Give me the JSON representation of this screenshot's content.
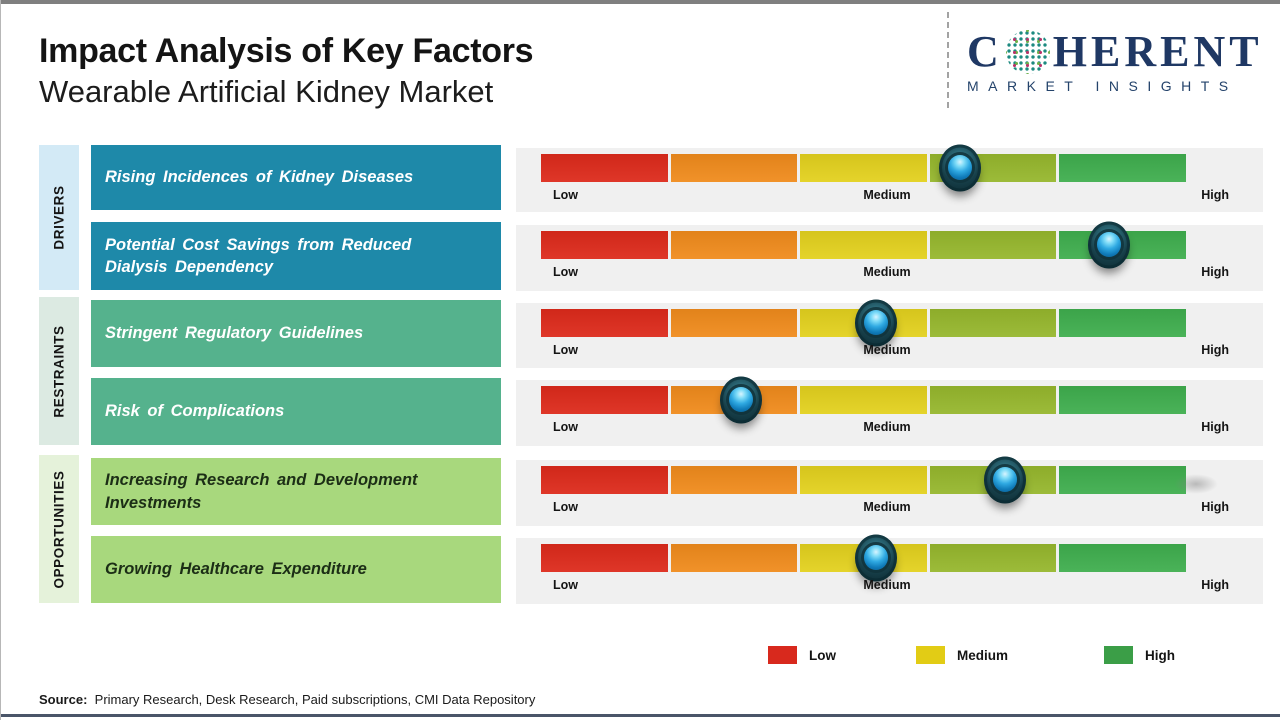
{
  "header": {
    "title": "Impact Analysis of Key Factors",
    "subtitle": "Wearable Artificial Kidney Market"
  },
  "logo": {
    "word_start": "C",
    "word_end": "HERENT",
    "tagline": "MARKET INSIGHTS",
    "navy_color": "#1f3864",
    "globe_icon_colors": [
      "#1d8a80",
      "#6fb14a",
      "#b8336b"
    ]
  },
  "chart_data": {
    "type": "impact-scale",
    "title": "Impact Analysis of Key Factors",
    "subtitle": "Wearable Artificial Kidney Market",
    "axis": {
      "min_label": "Low",
      "mid_label": "Medium",
      "max_label": "High",
      "range": [
        0,
        1
      ]
    },
    "segment_colors": [
      "#dd2a1b",
      "#f08b1c",
      "#e3d11e",
      "#96b72d",
      "#3fae4e"
    ],
    "track_background": "#f0f0f0",
    "marker_style": "glossy-blue-sphere",
    "groups": [
      {
        "name": "DRIVERS",
        "label_bg": "#d3eaf6",
        "box_color": "#1e89a9",
        "factors": [
          {
            "label": "Rising Incidences of Kidney Diseases",
            "impact_pos": 0.65,
            "impact_reading": "Medium-High"
          },
          {
            "label": "Potential Cost Savings from Reduced Dialysis Dependency",
            "impact_pos": 0.88,
            "impact_reading": "High"
          }
        ]
      },
      {
        "name": "RESTRAINTS",
        "label_bg": "#dceae2",
        "box_color": "#55b28d",
        "factors": [
          {
            "label": "Stringent Regulatory Guidelines",
            "impact_pos": 0.52,
            "impact_reading": "Medium"
          },
          {
            "label": "Risk of Complications",
            "impact_pos": 0.31,
            "impact_reading": "Low-Medium"
          }
        ]
      },
      {
        "name": "OPPORTUNITIES",
        "label_bg": "#e5f2da",
        "box_color": "#a8d87d",
        "factors": [
          {
            "label": "Increasing Research and Development Investments",
            "impact_pos": 0.72,
            "impact_reading": "Medium-High"
          },
          {
            "label": "Growing Healthcare Expenditure",
            "impact_pos": 0.52,
            "impact_reading": "Medium"
          }
        ]
      }
    ],
    "legend": [
      {
        "label": "Low",
        "color": "#d8291d"
      },
      {
        "label": "Medium",
        "color": "#e2cc15"
      },
      {
        "label": "High",
        "color": "#3b9e47"
      }
    ],
    "legend_position": "bottom-right"
  },
  "footer": {
    "source_label": "Source:",
    "source_text": "Primary Research, Desk Research, Paid subscriptions, CMI Data Repository"
  }
}
